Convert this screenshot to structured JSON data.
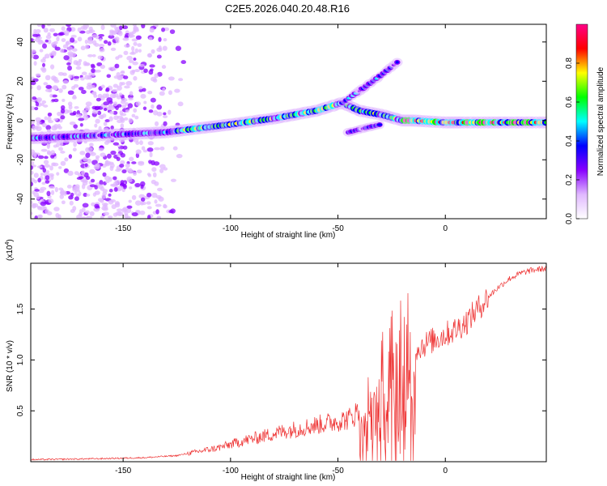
{
  "title": "C2E5.2026.040.20.48.R16",
  "chart_data": [
    {
      "type": "heatmap",
      "xlabel": "Height of straight line (km)",
      "ylabel": "Frequency (Hz)",
      "xlim": [
        -193,
        47
      ],
      "ylim": [
        -50,
        49
      ],
      "x_ticks": [
        -150,
        -100,
        -50,
        0
      ],
      "x_tick_labels": [
        "-150",
        "-100",
        "-50",
        "0"
      ],
      "y_ticks": [
        -40,
        -20,
        0,
        20,
        40
      ],
      "y_tick_labels": [
        "-40",
        "-20",
        "0",
        "20",
        "40"
      ],
      "colorbar": {
        "label": "Normalized spectral amplitude",
        "range": [
          0,
          1
        ],
        "ticks": [
          0,
          0.2,
          0.4,
          0.6,
          0.8
        ],
        "tick_labels": [
          "0.0",
          "0.2",
          "0.4",
          "0.6",
          "0.8"
        ],
        "colors": [
          "#ffffff",
          "#e0b8ff",
          "#8800ff",
          "#0000ff",
          "#00ffff",
          "#00ff00",
          "#ffff00",
          "#ff0000",
          "#ff0088"
        ]
      },
      "ridge_main": [
        [
          -193,
          -9
        ],
        [
          -170,
          -8
        ],
        [
          -150,
          -7
        ],
        [
          -130,
          -6
        ],
        [
          -115,
          -4
        ],
        [
          -100,
          -2
        ],
        [
          -80,
          1
        ],
        [
          -60,
          5
        ],
        [
          -48,
          9
        ],
        [
          -40,
          5
        ],
        [
          -30,
          3
        ],
        [
          -20,
          0
        ],
        [
          -15,
          0
        ],
        [
          0,
          -1
        ],
        [
          20,
          -1
        ],
        [
          47,
          -1
        ]
      ],
      "ridge_branch": [
        [
          -48,
          9
        ],
        [
          -40,
          15
        ],
        [
          -30,
          23
        ],
        [
          -22,
          30
        ]
      ],
      "ridge_lower": [
        [
          -45,
          -6
        ],
        [
          -38,
          -4
        ],
        [
          -30,
          -2
        ]
      ],
      "scatter_region_x": [
        -193,
        -120
      ],
      "grid": false
    },
    {
      "type": "line",
      "xlabel": "Height of straight line (km)",
      "ylabel": "SNR (10 * v/v)",
      "exponent_label": "(x10",
      "exponent_power": "4",
      "xlim": [
        -193,
        47
      ],
      "ylim": [
        0,
        1.95
      ],
      "x_ticks": [
        -150,
        -100,
        -50,
        0
      ],
      "x_tick_labels": [
        "-150",
        "-100",
        "-50",
        "0"
      ],
      "y_ticks": [
        0.5,
        1.0,
        1.5
      ],
      "y_tick_labels": [
        "0.5",
        "1.0",
        "1.5"
      ],
      "color": "#ee3333",
      "envelope": [
        [
          -193,
          0.02
        ],
        [
          -160,
          0.03
        ],
        [
          -140,
          0.04
        ],
        [
          -125,
          0.06
        ],
        [
          -115,
          0.1
        ],
        [
          -105,
          0.14
        ],
        [
          -95,
          0.2
        ],
        [
          -85,
          0.25
        ],
        [
          -75,
          0.3
        ],
        [
          -65,
          0.34
        ],
        [
          -55,
          0.38
        ],
        [
          -45,
          0.42
        ],
        [
          -40,
          0.5
        ],
        [
          -35,
          0.65
        ],
        [
          -30,
          0.85
        ],
        [
          -25,
          1.05
        ],
        [
          -20,
          1.15
        ],
        [
          -15,
          1.1
        ],
        [
          -10,
          1.15
        ],
        [
          -5,
          1.2
        ],
        [
          0,
          1.25
        ],
        [
          5,
          1.3
        ],
        [
          10,
          1.38
        ],
        [
          15,
          1.5
        ],
        [
          20,
          1.62
        ],
        [
          25,
          1.72
        ],
        [
          30,
          1.8
        ],
        [
          35,
          1.85
        ],
        [
          40,
          1.88
        ],
        [
          47,
          1.9
        ]
      ],
      "grid": false
    }
  ]
}
